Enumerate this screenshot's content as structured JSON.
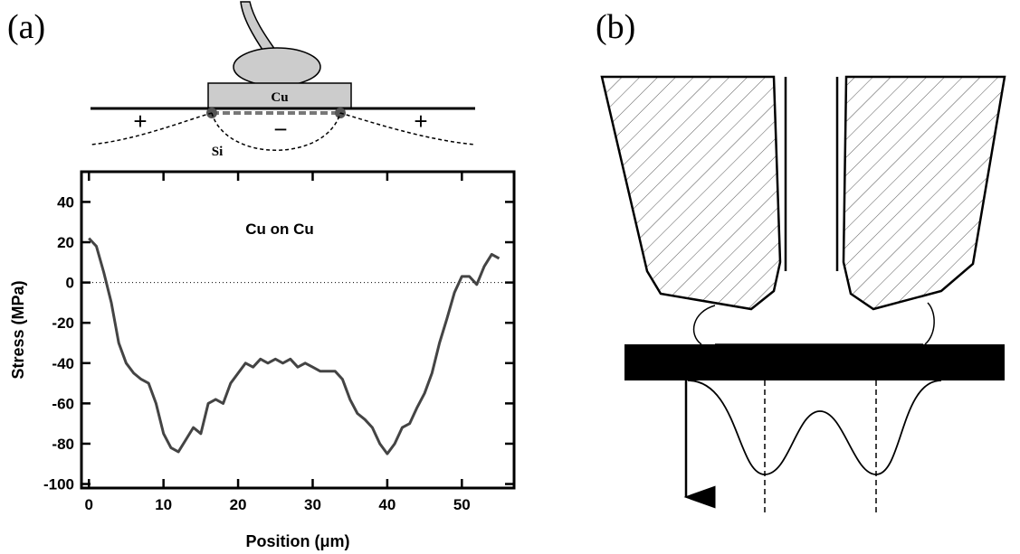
{
  "labels": {
    "panel_a": "(a)",
    "panel_b": "(b)",
    "metal": "Cu",
    "substrate": "Si",
    "plus_left": "+",
    "minus": "−",
    "plus_right": "+"
  },
  "chart_data": {
    "type": "line",
    "annotation": "Cu on Cu",
    "xlabel": "Position (μm)",
    "ylabel": "Stress (MPa)",
    "x": [
      0,
      1,
      2,
      3,
      4,
      5,
      6,
      7,
      8,
      9,
      10,
      11,
      12,
      13,
      14,
      15,
      16,
      17,
      18,
      19,
      20,
      21,
      22,
      23,
      24,
      25,
      26,
      27,
      28,
      29,
      30,
      31,
      32,
      33,
      34,
      35,
      36,
      37,
      38,
      39,
      40,
      41,
      42,
      43,
      44,
      45,
      46,
      47,
      48,
      49,
      50,
      51,
      52,
      53,
      54,
      55
    ],
    "series": [
      {
        "color": "#444444",
        "values": [
          22,
          18,
          5,
          -10,
          -30,
          -40,
          -45,
          -48,
          -50,
          -60,
          -75,
          -82,
          -84,
          -78,
          -72,
          -75,
          -60,
          -58,
          -60,
          -50,
          -45,
          -40,
          -42,
          -38,
          -40,
          -38,
          -40,
          -38,
          -42,
          -40,
          -42,
          -44,
          -44,
          -44,
          -48,
          -58,
          -65,
          -68,
          -72,
          -80,
          -85,
          -80,
          -72,
          -70,
          -62,
          -55,
          -45,
          -30,
          -18,
          -5,
          3,
          3,
          -1,
          8,
          14,
          12
        ]
      }
    ],
    "xlim": [
      -1,
      57
    ],
    "ylim": [
      -102,
      55
    ],
    "xticks": [
      0,
      10,
      20,
      30,
      40,
      50
    ],
    "yticks": [
      -100,
      -80,
      -60,
      -40,
      -20,
      0,
      20,
      40
    ],
    "hline": 0
  }
}
